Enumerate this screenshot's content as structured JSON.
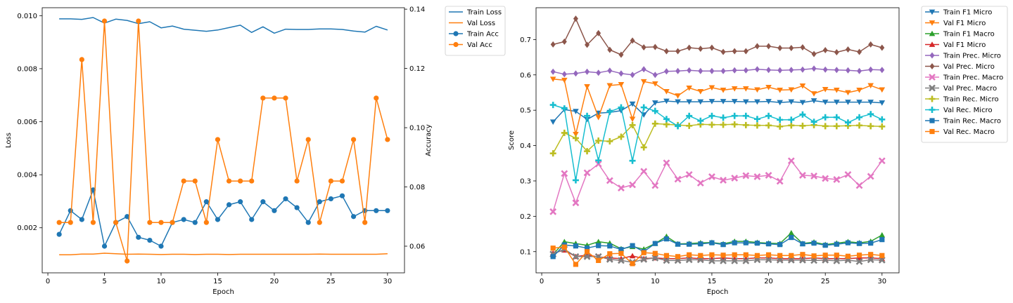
{
  "chart_data": [
    {
      "type": "line",
      "title": "",
      "xlabel": "Epoch",
      "ylabel": "Loss",
      "ylabel_right": "Accuracy",
      "xlim": [
        -0.5,
        31.5
      ],
      "ylim": [
        0.0003,
        0.0103
      ],
      "ylim_right": [
        0.051,
        0.1405
      ],
      "x_ticks": [
        0,
        5,
        10,
        15,
        20,
        25,
        30
      ],
      "y_ticks": [
        0.002,
        0.004,
        0.006,
        0.008,
        0.01
      ],
      "y_tick_labels": [
        "0.002",
        "0.004",
        "0.006",
        "0.008",
        "0.010"
      ],
      "y_ticks_right": [
        0.06,
        0.08,
        0.1,
        0.12,
        0.14
      ],
      "y_tick_labels_right": [
        "0.06",
        "0.08",
        "0.10",
        "0.12",
        "0.14"
      ],
      "grid": false,
      "legend_position": "outside-right-top",
      "x": [
        1,
        2,
        3,
        4,
        5,
        6,
        7,
        8,
        9,
        10,
        11,
        12,
        13,
        14,
        15,
        16,
        17,
        18,
        19,
        20,
        21,
        22,
        23,
        24,
        25,
        26,
        27,
        28,
        29,
        30
      ],
      "series": [
        {
          "name": "Train Loss",
          "axis": "left",
          "color": "#1f77b4",
          "marker": "none",
          "values": [
            0.00988,
            0.00988,
            0.00986,
            0.00993,
            0.00972,
            0.00987,
            0.00982,
            0.0097,
            0.00977,
            0.00954,
            0.00961,
            0.00949,
            0.00945,
            0.00941,
            0.00946,
            0.00955,
            0.00964,
            0.00937,
            0.00958,
            0.00934,
            0.00949,
            0.00948,
            0.00948,
            0.0095,
            0.0095,
            0.00948,
            0.00942,
            0.00938,
            0.0096,
            0.00946
          ]
        },
        {
          "name": "Val Loss",
          "axis": "left",
          "color": "#ff7f0e",
          "marker": "none",
          "values": [
            0.00098,
            0.00098,
            0.00101,
            0.00101,
            0.00104,
            0.00102,
            0.001,
            0.00101,
            0.001,
            0.00099,
            0.001,
            0.001,
            0.00099,
            0.001,
            0.001,
            0.00099,
            0.001,
            0.001,
            0.001,
            0.001,
            0.001,
            0.001,
            0.001,
            0.00101,
            0.001,
            0.001,
            0.001,
            0.001,
            0.001,
            0.00102
          ]
        },
        {
          "name": "Train Acc",
          "axis": "right",
          "color": "#1f77b4",
          "marker": "circle",
          "values": [
            0.064,
            0.072,
            0.069,
            0.079,
            0.06,
            0.068,
            0.07,
            0.063,
            0.062,
            0.06,
            0.068,
            0.069,
            0.068,
            0.075,
            0.069,
            0.074,
            0.075,
            0.069,
            0.075,
            0.072,
            0.076,
            0.073,
            0.068,
            0.075,
            0.076,
            0.077,
            0.07,
            0.072,
            0.072,
            0.072
          ]
        },
        {
          "name": "Val Acc",
          "axis": "right",
          "color": "#ff7f0e",
          "marker": "circle",
          "values": [
            0.068,
            0.068,
            0.123,
            0.068,
            0.136,
            0.068,
            0.055,
            0.136,
            0.068,
            0.068,
            0.068,
            0.082,
            0.082,
            0.068,
            0.096,
            0.082,
            0.082,
            0.082,
            0.11,
            0.11,
            0.11,
            0.082,
            0.096,
            0.068,
            0.082,
            0.082,
            0.096,
            0.068,
            0.11,
            0.096
          ]
        }
      ]
    },
    {
      "type": "line",
      "title": "",
      "xlabel": "Epoch",
      "ylabel": "Score",
      "xlim": [
        -0.5,
        31.5
      ],
      "ylim": [
        0.04,
        0.79
      ],
      "x_ticks": [
        0,
        5,
        10,
        15,
        20,
        25,
        30
      ],
      "y_ticks": [
        0.1,
        0.2,
        0.3,
        0.4,
        0.5,
        0.6,
        0.7
      ],
      "y_tick_labels": [
        "0.1",
        "0.2",
        "0.3",
        "0.4",
        "0.5",
        "0.6",
        "0.7"
      ],
      "grid": false,
      "legend_position": "outside-right-top",
      "x": [
        1,
        2,
        3,
        4,
        5,
        6,
        7,
        8,
        9,
        10,
        11,
        12,
        13,
        14,
        15,
        16,
        17,
        18,
        19,
        20,
        21,
        22,
        23,
        24,
        25,
        26,
        27,
        28,
        29,
        30
      ],
      "series": [
        {
          "name": "Train F1 Micro",
          "color": "#1f77b4",
          "marker": "triangle-down",
          "values": [
            0.467,
            0.502,
            0.497,
            0.474,
            0.492,
            0.494,
            0.499,
            0.518,
            0.487,
            0.521,
            0.526,
            0.524,
            0.524,
            0.524,
            0.525,
            0.525,
            0.525,
            0.524,
            0.524,
            0.525,
            0.522,
            0.524,
            0.522,
            0.527,
            0.523,
            0.523,
            0.523,
            0.523,
            0.523,
            0.521
          ]
        },
        {
          "name": "Val F1 Micro",
          "color": "#ff7f0e",
          "marker": "triangle-down",
          "values": [
            0.588,
            0.585,
            0.432,
            0.567,
            0.48,
            0.57,
            0.573,
            0.475,
            0.581,
            0.575,
            0.553,
            0.541,
            0.563,
            0.553,
            0.564,
            0.557,
            0.561,
            0.561,
            0.558,
            0.565,
            0.557,
            0.558,
            0.569,
            0.547,
            0.559,
            0.557,
            0.55,
            0.557,
            0.57,
            0.558
          ]
        },
        {
          "name": "Train F1 Macro",
          "color": "#2ca02c",
          "marker": "triangle-up",
          "values": [
            0.092,
            0.128,
            0.123,
            0.118,
            0.128,
            0.124,
            0.108,
            0.114,
            0.107,
            0.123,
            0.143,
            0.122,
            0.123,
            0.125,
            0.126,
            0.122,
            0.129,
            0.129,
            0.126,
            0.124,
            0.123,
            0.153,
            0.123,
            0.127,
            0.12,
            0.124,
            0.128,
            0.125,
            0.129,
            0.147
          ]
        },
        {
          "name": "Val F1 Micro",
          "color": "#d62728",
          "marker": "triangle-up",
          "values": [
            0.096,
            0.104,
            0.086,
            0.09,
            0.085,
            0.082,
            0.08,
            0.088,
            0.08,
            0.082,
            0.08,
            0.08,
            0.082,
            0.08,
            0.08,
            0.082,
            0.08,
            0.08,
            0.082,
            0.082,
            0.08,
            0.08,
            0.08,
            0.082,
            0.08,
            0.08,
            0.08,
            0.082,
            0.082,
            0.08
          ]
        },
        {
          "name": "Train Prec. Micro",
          "color": "#9467bd",
          "marker": "diamond",
          "values": [
            0.609,
            0.602,
            0.604,
            0.609,
            0.606,
            0.612,
            0.604,
            0.6,
            0.616,
            0.6,
            0.61,
            0.611,
            0.613,
            0.611,
            0.611,
            0.611,
            0.613,
            0.613,
            0.616,
            0.614,
            0.613,
            0.614,
            0.615,
            0.618,
            0.615,
            0.614,
            0.613,
            0.611,
            0.615,
            0.614
          ]
        },
        {
          "name": "Val Prec. Micro",
          "color": "#8c564b",
          "marker": "diamond",
          "values": [
            0.686,
            0.694,
            0.759,
            0.685,
            0.718,
            0.671,
            0.657,
            0.697,
            0.678,
            0.679,
            0.667,
            0.667,
            0.677,
            0.674,
            0.677,
            0.665,
            0.667,
            0.667,
            0.681,
            0.681,
            0.676,
            0.676,
            0.678,
            0.659,
            0.67,
            0.664,
            0.672,
            0.665,
            0.686,
            0.677
          ]
        },
        {
          "name": "Train Prec. Macro",
          "color": "#e377c2",
          "marker": "x",
          "values": [
            0.213,
            0.321,
            0.238,
            0.323,
            0.348,
            0.301,
            0.28,
            0.289,
            0.327,
            0.287,
            0.351,
            0.305,
            0.318,
            0.294,
            0.312,
            0.302,
            0.308,
            0.315,
            0.312,
            0.316,
            0.299,
            0.357,
            0.316,
            0.314,
            0.307,
            0.304,
            0.318,
            0.287,
            0.313,
            0.357
          ]
        },
        {
          "name": "Val Prec. Macro",
          "color": "#7f7f7f",
          "marker": "x",
          "values": [
            0.093,
            0.107,
            0.086,
            0.086,
            0.086,
            0.078,
            0.075,
            0.07,
            0.078,
            0.082,
            0.075,
            0.075,
            0.077,
            0.077,
            0.074,
            0.074,
            0.074,
            0.074,
            0.077,
            0.077,
            0.076,
            0.076,
            0.076,
            0.075,
            0.076,
            0.074,
            0.076,
            0.072,
            0.077,
            0.076
          ]
        },
        {
          "name": "Train Rec. Micro",
          "color": "#bcbd22",
          "marker": "plus",
          "values": [
            0.378,
            0.436,
            0.421,
            0.384,
            0.414,
            0.412,
            0.425,
            0.458,
            0.395,
            0.462,
            0.46,
            0.458,
            0.456,
            0.46,
            0.459,
            0.459,
            0.46,
            0.458,
            0.457,
            0.457,
            0.454,
            0.457,
            0.456,
            0.458,
            0.455,
            0.455,
            0.456,
            0.457,
            0.455,
            0.454
          ]
        },
        {
          "name": "Val Rec. Micro",
          "color": "#17becf",
          "marker": "plus",
          "values": [
            0.515,
            0.505,
            0.302,
            0.484,
            0.358,
            0.496,
            0.508,
            0.357,
            0.508,
            0.498,
            0.475,
            0.455,
            0.484,
            0.47,
            0.484,
            0.479,
            0.484,
            0.484,
            0.475,
            0.484,
            0.473,
            0.473,
            0.488,
            0.467,
            0.48,
            0.48,
            0.465,
            0.48,
            0.489,
            0.474
          ]
        },
        {
          "name": "Train Rec. Macro",
          "color": "#1f77b4",
          "marker": "square",
          "values": [
            0.086,
            0.119,
            0.116,
            0.11,
            0.117,
            0.116,
            0.106,
            0.117,
            0.1,
            0.123,
            0.136,
            0.121,
            0.121,
            0.122,
            0.125,
            0.12,
            0.125,
            0.125,
            0.124,
            0.122,
            0.12,
            0.14,
            0.122,
            0.124,
            0.118,
            0.121,
            0.125,
            0.123,
            0.124,
            0.134
          ]
        },
        {
          "name": "Val Rec. Macro",
          "color": "#ff7f0e",
          "marker": "square",
          "values": [
            0.11,
            0.113,
            0.064,
            0.1,
            0.075,
            0.094,
            0.095,
            0.066,
            0.097,
            0.095,
            0.089,
            0.086,
            0.091,
            0.089,
            0.091,
            0.09,
            0.091,
            0.091,
            0.089,
            0.091,
            0.089,
            0.089,
            0.092,
            0.088,
            0.09,
            0.09,
            0.087,
            0.09,
            0.092,
            0.089
          ]
        }
      ]
    }
  ]
}
